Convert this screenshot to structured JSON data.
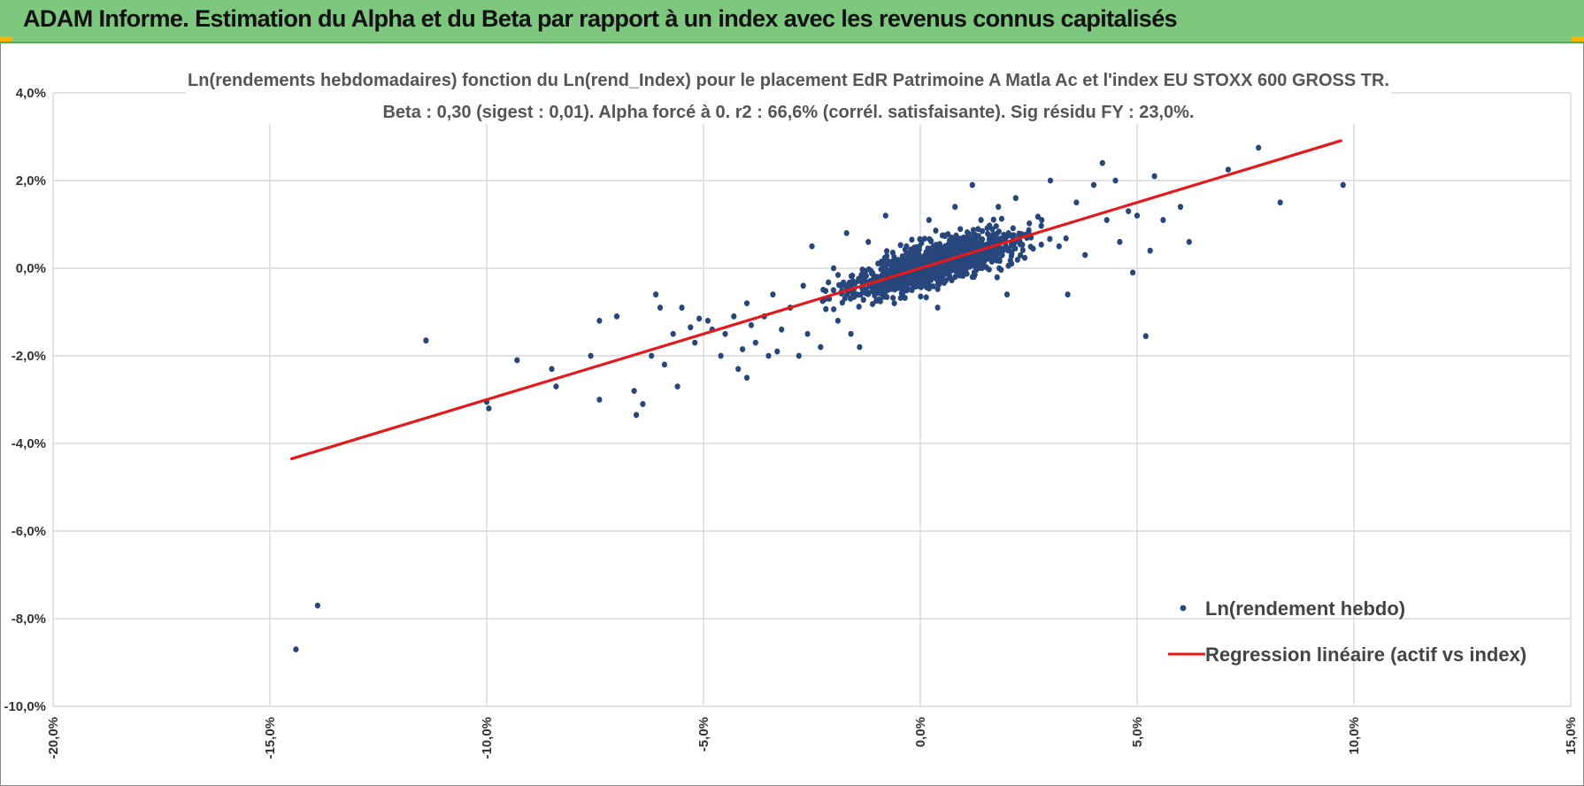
{
  "header": {
    "title": "ADAM Informe. Estimation du Alpha et du Beta par rapport à un index avec les revenus connus capitalisés",
    "background": "#7dc77e"
  },
  "chart_data": {
    "type": "scatter",
    "title_line1": "Ln(rendements hebdomadaires) fonction du Ln(rend_Index) pour le placement EdR Patrimoine A Matla Ac et l'index EU STOXX 600 GROSS TR.",
    "title_line2": "Beta : 0,30 (sigest : 0,01). Alpha forcé à 0. r2 : 66,6% (corrél. satisfaisante). Sig résidu FY : 23,0%.",
    "xlabel": "",
    "ylabel": "",
    "xlim": [
      -20,
      15
    ],
    "ylim": [
      -10,
      4
    ],
    "grid": true,
    "x_ticks": [
      -20,
      -15,
      -10,
      -5,
      0,
      5,
      10,
      15
    ],
    "x_tick_labels": [
      "-20,0%",
      "-15,0%",
      "-10,0%",
      "-5,0%",
      "0,0%",
      "5,0%",
      "10,0%",
      "15,0%"
    ],
    "y_ticks": [
      4,
      2,
      0,
      -2,
      -4,
      -6,
      -8,
      -10
    ],
    "y_tick_labels": [
      "4,0%",
      "2,0%",
      "0,0%",
      "-2,0%",
      "-4,0%",
      "-6,0%",
      "-8,0%",
      "-10,0%"
    ],
    "legend_position": "bottom-right",
    "series": [
      {
        "name": "Ln(rendement hebdo)",
        "kind": "scatter",
        "color": "#26467c",
        "points": [
          [
            -14.4,
            -8.7
          ],
          [
            -13.9,
            -7.7
          ],
          [
            -11.4,
            -1.65
          ],
          [
            -10.0,
            -3.05
          ],
          [
            -9.95,
            -3.2
          ],
          [
            -9.3,
            -2.1
          ],
          [
            -8.5,
            -2.3
          ],
          [
            -8.4,
            -2.7
          ],
          [
            -7.6,
            -2.0
          ],
          [
            -7.4,
            -1.2
          ],
          [
            -7.4,
            -3.0
          ],
          [
            -7.0,
            -1.1
          ],
          [
            -6.6,
            -2.8
          ],
          [
            -6.55,
            -3.35
          ],
          [
            -6.4,
            -3.1
          ],
          [
            -6.2,
            -2.0
          ],
          [
            -6.1,
            -0.6
          ],
          [
            -6.0,
            -0.9
          ],
          [
            -5.9,
            -2.2
          ],
          [
            -5.7,
            -1.5
          ],
          [
            -5.6,
            -2.7
          ],
          [
            -5.5,
            -0.9
          ],
          [
            -5.3,
            -1.35
          ],
          [
            -5.2,
            -1.7
          ],
          [
            -5.1,
            -1.15
          ],
          [
            -4.9,
            -1.2
          ],
          [
            -4.8,
            -1.4
          ],
          [
            -4.6,
            -2.0
          ],
          [
            -4.5,
            -1.5
          ],
          [
            -4.3,
            -1.1
          ],
          [
            -4.2,
            -2.3
          ],
          [
            -4.1,
            -1.85
          ],
          [
            -4.0,
            -0.8
          ],
          [
            -3.9,
            -1.3
          ],
          [
            -3.8,
            -1.7
          ],
          [
            -3.6,
            -1.1
          ],
          [
            -3.5,
            -2.0
          ],
          [
            -3.4,
            -0.6
          ],
          [
            -3.3,
            -1.9
          ],
          [
            -3.2,
            -1.4
          ],
          [
            -3.0,
            -0.9
          ],
          [
            -2.8,
            -2.0
          ],
          [
            -2.7,
            -0.4
          ],
          [
            -2.6,
            -1.5
          ],
          [
            -2.5,
            0.5
          ],
          [
            -4.0,
            -2.5
          ],
          [
            -2.3,
            -1.8
          ],
          [
            -2.1,
            -0.7
          ],
          [
            -2.0,
            0.0
          ],
          [
            -1.9,
            -1.2
          ],
          [
            -1.7,
            0.8
          ],
          [
            -1.6,
            -1.5
          ],
          [
            -1.4,
            -1.8
          ],
          [
            -1.2,
            0.6
          ],
          [
            -1.0,
            -0.2
          ],
          [
            -0.8,
            1.2
          ],
          [
            -0.6,
            -0.8
          ],
          [
            -0.3,
            0.2
          ],
          [
            0.0,
            0.0
          ],
          [
            0.2,
            1.1
          ],
          [
            0.4,
            -0.9
          ],
          [
            0.6,
            0.3
          ],
          [
            0.8,
            1.4
          ],
          [
            1.0,
            0.6
          ],
          [
            1.2,
            -0.2
          ],
          [
            1.2,
            1.9
          ],
          [
            1.4,
            1.1
          ],
          [
            1.6,
            0.4
          ],
          [
            1.8,
            1.4
          ],
          [
            2.0,
            -0.6
          ],
          [
            2.2,
            1.6
          ],
          [
            2.5,
            0.8
          ],
          [
            2.8,
            1.1
          ],
          [
            3.0,
            2.0
          ],
          [
            3.2,
            0.5
          ],
          [
            3.4,
            -0.6
          ],
          [
            3.6,
            1.5
          ],
          [
            3.8,
            0.3
          ],
          [
            4.0,
            1.9
          ],
          [
            4.2,
            2.4
          ],
          [
            4.3,
            1.1
          ],
          [
            4.5,
            2.0
          ],
          [
            4.6,
            0.6
          ],
          [
            4.8,
            1.3
          ],
          [
            4.9,
            -0.1
          ],
          [
            5.0,
            1.2
          ],
          [
            5.2,
            -1.55
          ],
          [
            5.3,
            0.4
          ],
          [
            5.4,
            2.1
          ],
          [
            5.6,
            1.1
          ],
          [
            6.0,
            1.4
          ],
          [
            6.2,
            0.6
          ],
          [
            7.1,
            2.25
          ],
          [
            7.8,
            2.75
          ],
          [
            8.3,
            1.5
          ],
          [
            9.75,
            1.9
          ]
        ]
      },
      {
        "name": "Regression linéaire (actif vs index)",
        "kind": "line",
        "color": "#e31a1c",
        "x": [
          -14.5,
          9.7
        ],
        "y": [
          -4.35,
          2.91
        ]
      }
    ]
  }
}
